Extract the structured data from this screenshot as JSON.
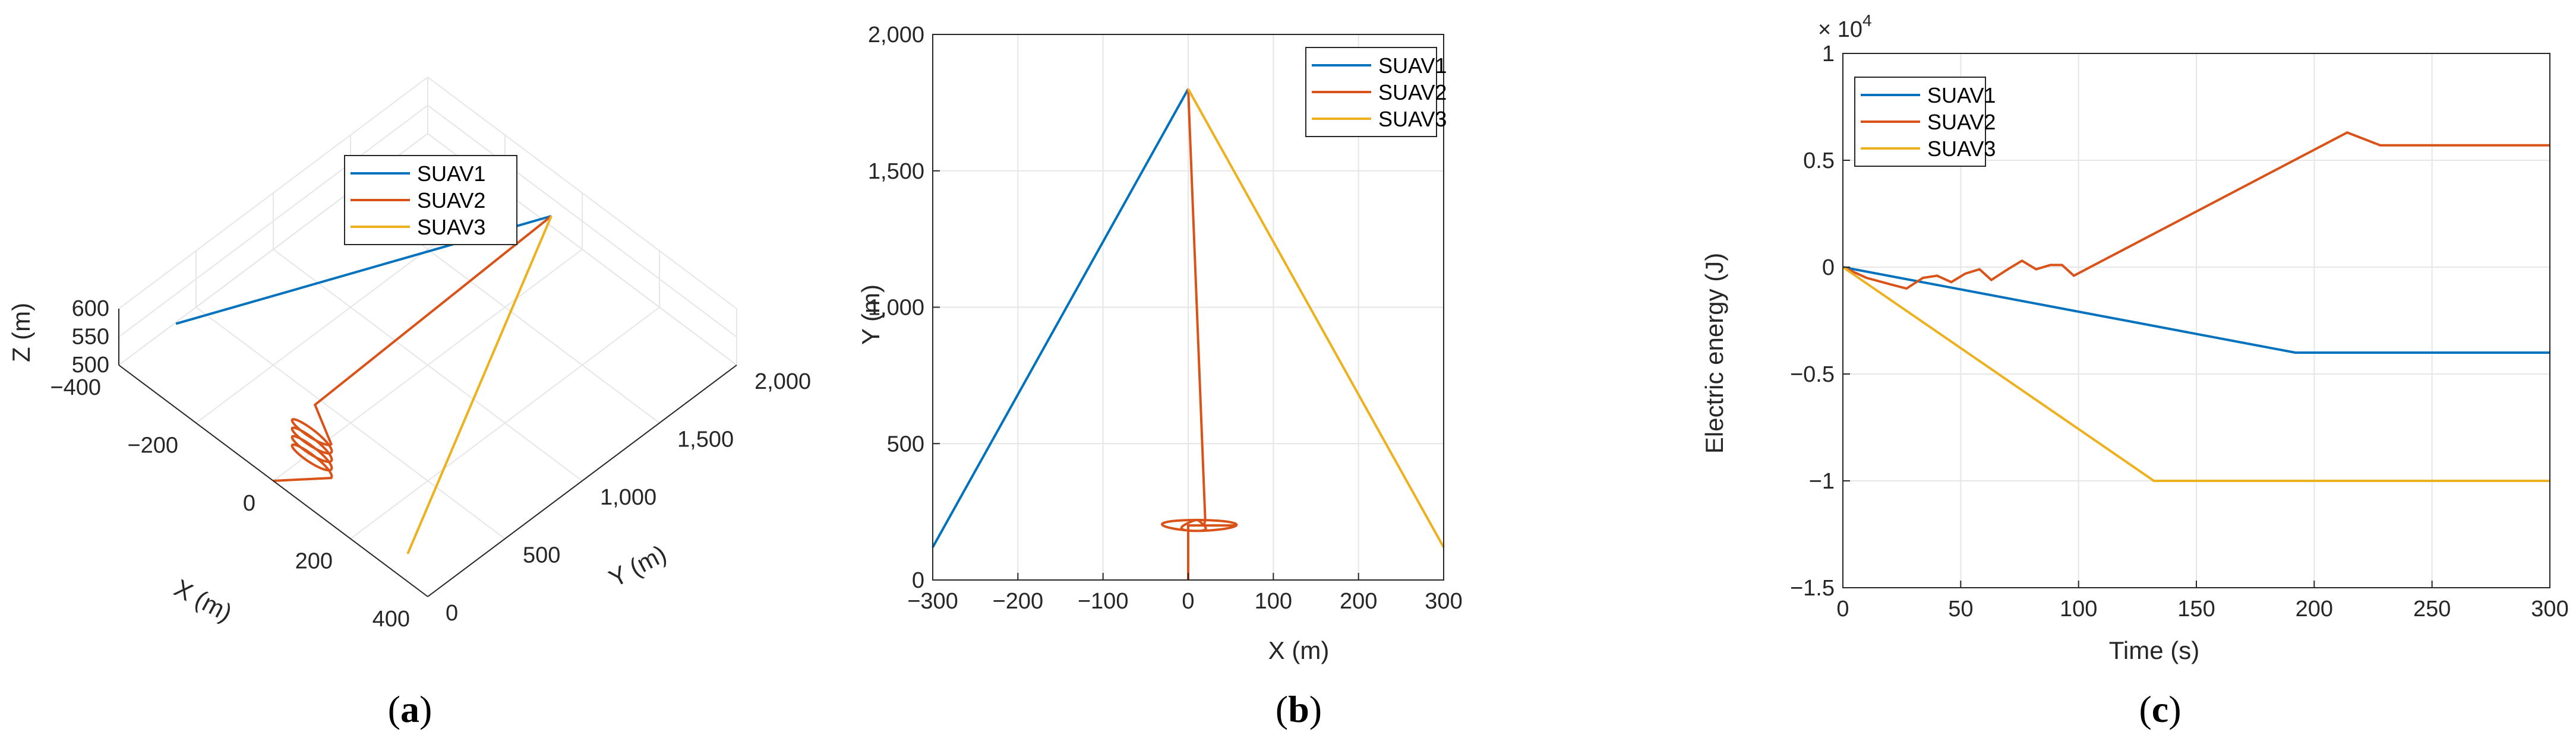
{
  "colors": {
    "suav1": "#0072BD",
    "suav2": "#D95319",
    "suav3": "#EDB120",
    "grid": "#e6e6e6",
    "axis": "#262626"
  },
  "panel_labels": [
    "a",
    "b",
    "c"
  ],
  "chart_data": [
    {
      "type": "line",
      "panel": "a",
      "view": "3d",
      "xlabel": "X (m)",
      "ylabel": "Y (m)",
      "zlabel": "Z (m)",
      "xlim": [
        -400,
        400
      ],
      "ylim": [
        0,
        2000
      ],
      "zlim": [
        500,
        600
      ],
      "xticks": [
        "−400",
        "−200",
        "0",
        "200",
        "400"
      ],
      "yticks": [
        "0",
        "500",
        "1,000",
        "1,500",
        "2,000"
      ],
      "zticks": [
        "500",
        "550",
        "600"
      ],
      "legend": {
        "position": "top",
        "entries": [
          "SUAV1",
          "SUAV2",
          "SUAV3"
        ]
      },
      "series": [
        {
          "name": "SUAV1",
          "x": [
            -300,
            0
          ],
          "y": [
            120,
            1800
          ],
          "z": [
            600,
            600
          ]
        },
        {
          "name": "SUAV2",
          "x": [
            0,
            0,
            20,
            0
          ],
          "y": [
            0,
            200,
            220,
            1800
          ],
          "z": [
            500,
            500,
            600,
            600
          ],
          "orbit": {
            "cx": 20,
            "cy": 200,
            "r": 50,
            "loops": 4
          }
        },
        {
          "name": "SUAV3",
          "x": [
            300,
            0
          ],
          "y": [
            120,
            1800
          ],
          "z": [
            500,
            600
          ]
        }
      ]
    },
    {
      "type": "line",
      "panel": "b",
      "xlabel": "X (m)",
      "ylabel": "Y (m)",
      "xlim": [
        -300,
        300
      ],
      "ylim": [
        0,
        2000
      ],
      "xticks": [
        "−300",
        "−200",
        "−100",
        "0",
        "100",
        "200",
        "300"
      ],
      "yticks": [
        "0",
        "500",
        "1,000",
        "1,500",
        "2,000"
      ],
      "grid": true,
      "legend": {
        "position": "top-right",
        "entries": [
          "SUAV1",
          "SUAV2",
          "SUAV3"
        ]
      },
      "series": [
        {
          "name": "SUAV1",
          "x": [
            -300,
            0
          ],
          "y": [
            120,
            1800
          ]
        },
        {
          "name": "SUAV2",
          "x": [
            0,
            0,
            20,
            0
          ],
          "y": [
            0,
            200,
            220,
            1800
          ],
          "orbit": {
            "cx": 20,
            "cy": 200,
            "rx": 50,
            "ry": 20,
            "loops": 3
          }
        },
        {
          "name": "SUAV3",
          "x": [
            300,
            0
          ],
          "y": [
            120,
            1800
          ]
        }
      ]
    },
    {
      "type": "line",
      "panel": "c",
      "xlabel": "Time (s)",
      "ylabel": "Electric energy (J)",
      "xlim": [
        0,
        300
      ],
      "ylim": [
        -1.5,
        1
      ],
      "exponent_label": "× 10",
      "exponent_power": "4",
      "xticks": [
        "0",
        "50",
        "100",
        "150",
        "200",
        "250",
        "300"
      ],
      "yticks": [
        "−1.5",
        "−1",
        "−0.5",
        "0",
        "0.5",
        "1"
      ],
      "grid": true,
      "legend": {
        "position": "top-left",
        "entries": [
          "SUAV1",
          "SUAV2",
          "SUAV3"
        ]
      },
      "series": [
        {
          "name": "SUAV1",
          "x": [
            0,
            192,
            300
          ],
          "y": [
            0,
            -0.4,
            -0.4
          ]
        },
        {
          "name": "SUAV2",
          "x": [
            0,
            10,
            20,
            27,
            34,
            40,
            46,
            52,
            58,
            63,
            70,
            76,
            82,
            88,
            93,
            98,
            214,
            228,
            300
          ],
          "y": [
            0,
            -0.05,
            -0.08,
            -0.1,
            -0.05,
            -0.04,
            -0.07,
            -0.03,
            -0.01,
            -0.06,
            -0.01,
            0.03,
            -0.01,
            0.01,
            0.01,
            -0.04,
            0.63,
            0.57,
            0.57
          ]
        },
        {
          "name": "SUAV3",
          "x": [
            0,
            132,
            300
          ],
          "y": [
            0,
            -1.0,
            -1.0
          ]
        }
      ]
    }
  ]
}
